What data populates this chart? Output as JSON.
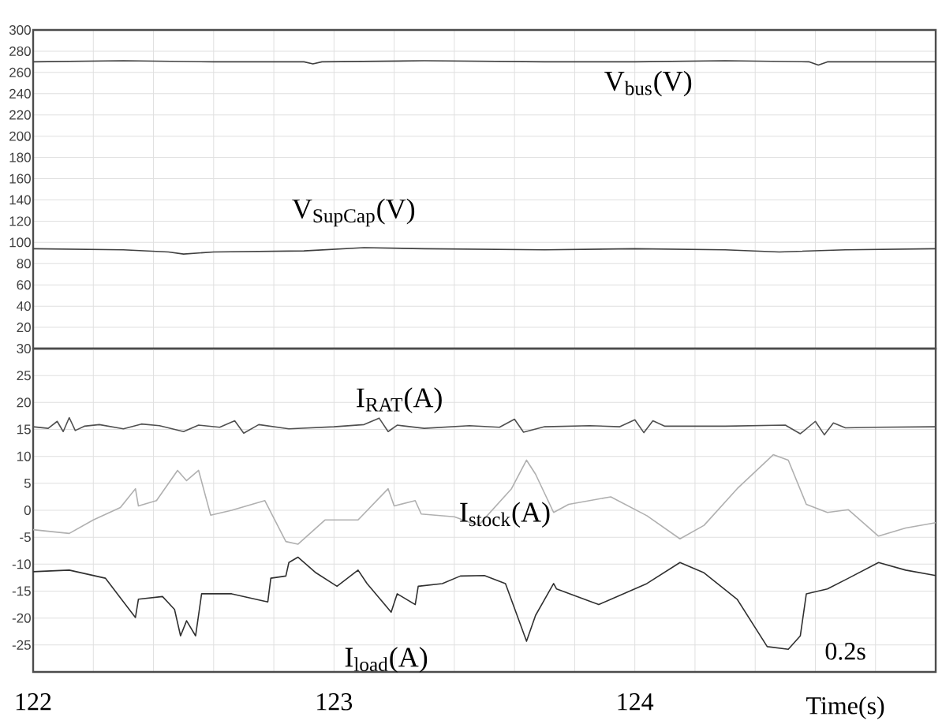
{
  "chart_data": [
    {
      "type": "line",
      "xlim": [
        122,
        125
      ],
      "ylim": [
        0,
        300
      ],
      "xticks": [
        122,
        {
          "value": 122.2,
          "label": null
        },
        {
          "value": 122.4,
          "label": null
        },
        {
          "value": 122.6,
          "label": null
        },
        {
          "value": 122.8,
          "label": null
        },
        123,
        {
          "value": 123.2,
          "label": null
        },
        {
          "value": 123.4,
          "label": null
        },
        {
          "value": 123.6,
          "label": null
        },
        {
          "value": 123.8,
          "label": null
        },
        124,
        {
          "value": 124.2,
          "label": null
        },
        {
          "value": 124.4,
          "label": null
        },
        {
          "value": 124.6,
          "label": null
        },
        {
          "value": 124.8,
          "label": null
        }
      ],
      "yticks": [
        20,
        40,
        60,
        80,
        100,
        120,
        140,
        160,
        180,
        200,
        220,
        240,
        260,
        280,
        300
      ],
      "tick_labels": "y",
      "grid": true,
      "series": [
        {
          "name": "V$_{bus}$(V)",
          "color": "#404040",
          "x": [
            122,
            122.3,
            122.6,
            122.9,
            122.93,
            122.96,
            123.3,
            123.7,
            124.0,
            124.3,
            124.58,
            124.61,
            124.64,
            124.9,
            125
          ],
          "values": [
            270,
            271,
            270,
            270,
            268,
            270,
            271,
            270,
            270,
            271,
            270,
            267,
            270,
            270,
            270
          ]
        },
        {
          "name": "V$_{SupCap}$(V)",
          "color": "#404040",
          "x": [
            122,
            122.3,
            122.45,
            122.5,
            122.6,
            122.9,
            123.1,
            123.3,
            123.7,
            124.0,
            124.3,
            124.48,
            124.7,
            125
          ],
          "values": [
            94,
            93,
            91,
            89,
            91,
            92,
            95,
            94,
            93,
            94,
            93,
            91,
            93,
            94
          ]
        }
      ]
    },
    {
      "type": "line",
      "xlim": [
        122,
        125
      ],
      "ylim": [
        -30,
        30
      ],
      "xlabel": "Time(s)",
      "xticks": [
        122,
        {
          "value": 122.2,
          "label": null
        },
        {
          "value": 122.4,
          "label": null
        },
        {
          "value": 122.6,
          "label": null
        },
        {
          "value": 122.8,
          "label": null
        },
        123,
        {
          "value": 123.2,
          "label": null
        },
        {
          "value": 123.4,
          "label": null
        },
        {
          "value": 123.6,
          "label": null
        },
        {
          "value": 123.8,
          "label": null
        },
        124,
        {
          "value": 124.2,
          "label": null
        },
        {
          "value": 124.4,
          "label": null
        },
        {
          "value": 124.6,
          "label": null
        },
        {
          "value": 124.8,
          "label": null
        }
      ],
      "yticks": [
        -25,
        -20,
        -15,
        -10,
        -5,
        0,
        5,
        10,
        15,
        20,
        25,
        30
      ],
      "grid": true,
      "annotations": [
        "0.2s"
      ],
      "series": [
        {
          "name": "I$_{RAT}$(A)",
          "color": "#505050",
          "x": [
            122,
            122.05,
            122.08,
            122.1,
            122.12,
            122.14,
            122.17,
            122.22,
            122.3,
            122.36,
            122.42,
            122.5,
            122.55,
            122.62,
            122.67,
            122.7,
            122.75,
            122.85,
            123.0,
            123.1,
            123.15,
            123.18,
            123.21,
            123.3,
            123.45,
            123.55,
            123.6,
            123.63,
            123.7,
            123.85,
            123.95,
            124.0,
            124.03,
            124.06,
            124.1,
            124.3,
            124.5,
            124.55,
            124.6,
            124.63,
            124.66,
            124.7,
            124.8,
            125
          ],
          "values": [
            15.5,
            15.2,
            16.5,
            14.6,
            17.2,
            14.8,
            15.6,
            15.9,
            15.1,
            16.0,
            15.7,
            14.6,
            15.8,
            15.4,
            16.6,
            14.3,
            15.9,
            15.1,
            15.5,
            15.9,
            17.1,
            14.6,
            15.8,
            15.2,
            15.7,
            15.4,
            16.9,
            14.5,
            15.5,
            15.7,
            15.5,
            16.8,
            14.4,
            16.6,
            15.6,
            15.6,
            15.8,
            14.2,
            16.5,
            14.0,
            16.2,
            15.3,
            15.4,
            15.5
          ]
        },
        {
          "name": "I$_{stock}$(A)",
          "color": "#b0b0b0",
          "x": [
            122,
            122.12,
            122.2,
            122.29,
            122.34,
            122.35,
            122.41,
            122.48,
            122.51,
            122.55,
            122.59,
            122.66,
            122.77,
            122.84,
            122.88,
            122.97,
            123.08,
            123.18,
            123.2,
            123.27,
            123.29,
            123.4,
            123.48,
            123.59,
            123.64,
            123.67,
            123.73,
            123.78,
            123.92,
            124.04,
            124.15,
            124.23,
            124.34,
            124.46,
            124.51,
            124.57,
            124.64,
            124.71,
            124.81,
            124.9,
            125
          ],
          "values": [
            -3.6,
            -4.3,
            -1.8,
            0.5,
            4,
            0.8,
            1.8,
            7.4,
            5.5,
            7.4,
            -0.9,
            0,
            1.8,
            -5.8,
            -6.3,
            -1.8,
            -1.8,
            4,
            0.8,
            1.8,
            -0.7,
            -1.2,
            -2.8,
            4,
            9.3,
            6.7,
            -0.4,
            1.1,
            2.5,
            -1,
            -5.3,
            -2.8,
            4,
            10.3,
            9.3,
            1.1,
            -0.4,
            0.1,
            -4.8,
            -3.3,
            -2.3
          ]
        },
        {
          "name": "I$_{load}$(A)",
          "color": "#303030",
          "x": [
            122,
            122.12,
            122.24,
            122.34,
            122.35,
            122.43,
            122.47,
            122.49,
            122.51,
            122.54,
            122.56,
            122.66,
            122.78,
            122.79,
            122.84,
            122.85,
            122.88,
            122.94,
            123.01,
            123.08,
            123.11,
            123.19,
            123.21,
            123.27,
            123.28,
            123.36,
            123.42,
            123.5,
            123.57,
            123.64,
            123.67,
            123.73,
            123.74,
            123.88,
            124.04,
            124.15,
            124.23,
            124.34,
            124.44,
            124.51,
            124.55,
            124.57,
            124.64,
            124.71,
            124.81,
            124.9,
            125
          ],
          "values": [
            -11.4,
            -11.1,
            -12.6,
            -19.9,
            -16.5,
            -16,
            -18.4,
            -23.3,
            -20.5,
            -23.3,
            -15.5,
            -15.5,
            -17,
            -12.6,
            -12.2,
            -9.7,
            -8.7,
            -11.6,
            -14.1,
            -11.1,
            -13.6,
            -18.9,
            -15.5,
            -17.5,
            -14.1,
            -13.6,
            -12.2,
            -12.1,
            -13.6,
            -24.3,
            -19.5,
            -13.6,
            -14.6,
            -17.5,
            -13.6,
            -9.7,
            -11.6,
            -16.5,
            -25.3,
            -25.8,
            -23.3,
            -15.5,
            -14.6,
            -12.6,
            -9.7,
            -11.1,
            -12.1
          ]
        }
      ]
    }
  ]
}
